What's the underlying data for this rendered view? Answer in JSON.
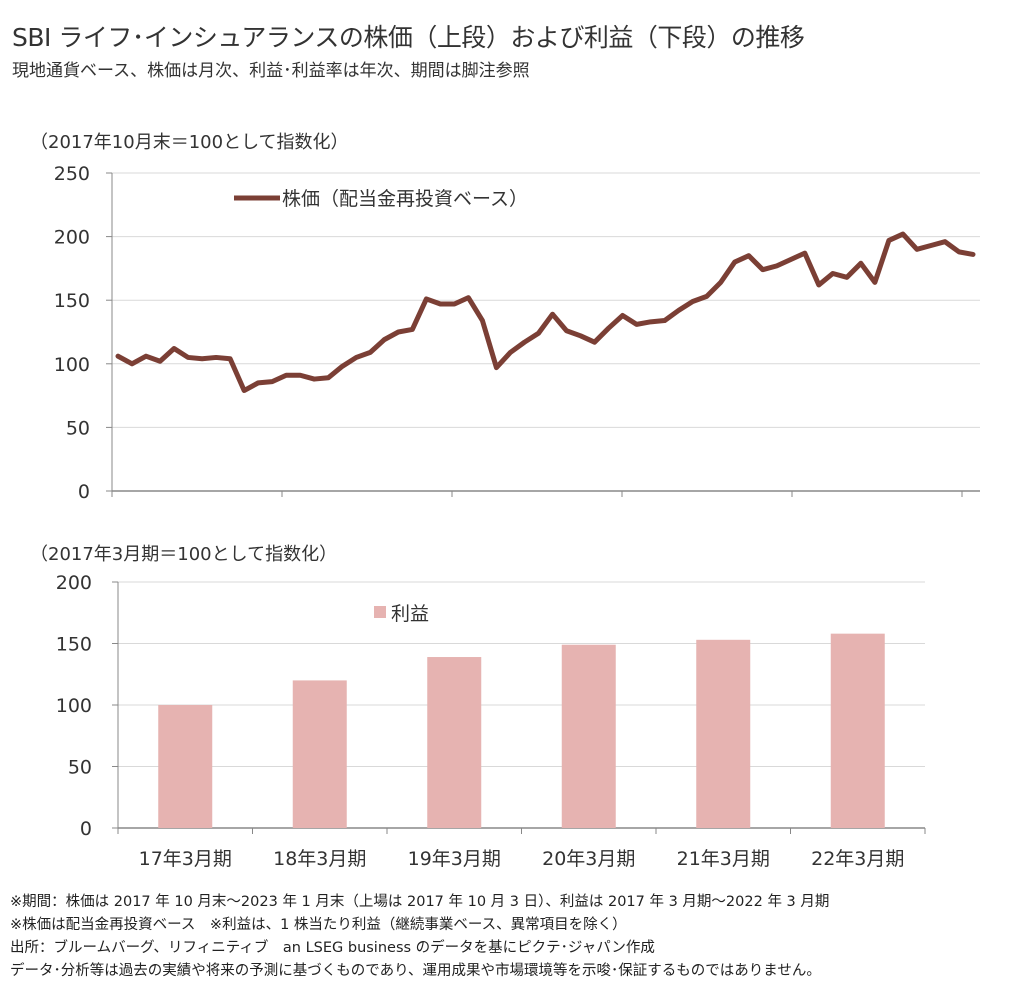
{
  "header": {
    "title": "SBI ライフ･インシュアランスの株価（上段）および利益（下段）の推移",
    "subtitle": "現地通貨ベース、株価は月次、利益･利益率は年次、期間は脚注参照"
  },
  "chart_data": [
    {
      "type": "line",
      "title": "",
      "unit_note": "（2017年10月末＝100として指数化）",
      "ylim": [
        0,
        250
      ],
      "yticks": [
        "0",
        "50",
        "100",
        "150",
        "200",
        "250"
      ],
      "ytick_values": [
        0,
        50,
        100,
        150,
        200,
        250
      ],
      "x_start": "2017年10月末",
      "x_end": "2023年1月末",
      "grid": true,
      "legend_position": "top-left",
      "color": "#7b3f35",
      "series": [
        {
          "name": "株価（配当金再投資ベース）",
          "values": [
            106,
            100,
            106,
            102,
            112,
            105,
            104,
            105,
            104,
            79,
            85,
            86,
            91,
            91,
            88,
            89,
            98,
            105,
            109,
            119,
            125,
            127,
            151,
            147,
            147,
            152,
            134,
            97,
            109,
            117,
            124,
            139,
            126,
            122,
            117,
            128,
            138,
            131,
            133,
            134,
            142,
            149,
            153,
            164,
            180,
            185,
            174,
            177,
            182,
            187,
            162,
            171,
            168,
            179,
            164,
            197,
            202,
            190,
            193,
            196,
            188,
            186
          ]
        }
      ]
    },
    {
      "type": "bar",
      "title": "",
      "unit_note": "（2017年3月期＝100として指数化）",
      "ylim": [
        0,
        200
      ],
      "yticks": [
        "0",
        "50",
        "100",
        "150",
        "200"
      ],
      "ytick_values": [
        0,
        50,
        100,
        150,
        200
      ],
      "categories": [
        "17年3月期",
        "18年3月期",
        "19年3月期",
        "20年3月期",
        "21年3月期",
        "22年3月期"
      ],
      "grid": true,
      "legend_position": "top-center",
      "color": "#e6b3b1",
      "series": [
        {
          "name": "利益",
          "values": [
            100,
            120,
            139,
            149,
            153,
            158
          ]
        }
      ]
    }
  ],
  "footnotes": [
    "※期間：株価は 2017 年 10 月末～2023 年 1 月末（上場は 2017 年 10 月 3 日）、利益は 2017 年 3 月期～2022 年 3 月期",
    "※株価は配当金再投資ベース　※利益は、1 株当たり利益（継続事業ベース、異常項目を除く）",
    "出所：ブルームバーグ、リフィニティブ　an LSEG business のデータを基にピクテ･ジャパン作成",
    "データ･分析等は過去の実績や将来の予測に基づくものであり、運用成果や市場環境等を示唆･保証するものではありません。"
  ]
}
